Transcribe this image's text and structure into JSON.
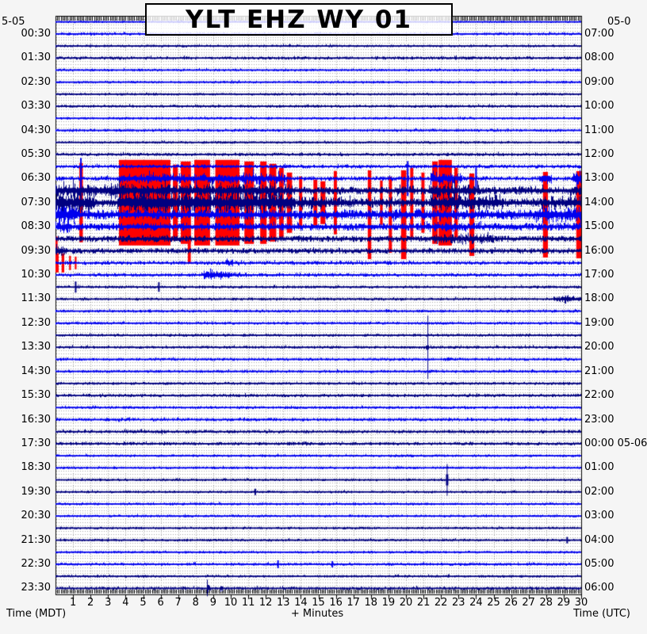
{
  "header": {
    "title": "YLT EHZ WY 01",
    "top_left_date": "5-05",
    "top_right_date": "05-0"
  },
  "axes": {
    "left_caption": "Time (MDT)",
    "right_caption": "Time (UTC)",
    "bottom_caption": "+ Minutes",
    "left_labels": [
      "00:30",
      "01:30",
      "02:30",
      "03:30",
      "04:30",
      "05:30",
      "06:30",
      "07:30",
      "08:30",
      "09:30",
      "10:30",
      "11:30",
      "12:30",
      "13:30",
      "14:30",
      "15:30",
      "16:30",
      "17:30",
      "18:30",
      "19:30",
      "20:30",
      "21:30",
      "22:30",
      "23:30"
    ],
    "right_labels": [
      "07:00",
      "08:00",
      "09:00",
      "10:00",
      "11:00",
      "12:00",
      "13:00",
      "14:00",
      "15:00",
      "16:00",
      "17:00",
      "18:00",
      "19:00",
      "20:00",
      "21:00",
      "22:00",
      "23:00",
      "00:00 05-06",
      "01:00",
      "02:00",
      "03:00",
      "04:00",
      "05:00",
      "06:00"
    ],
    "minute_labels": [
      "1",
      "2",
      "3",
      "4",
      "5",
      "6",
      "7",
      "8",
      "9",
      "10",
      "11",
      "12",
      "13",
      "14",
      "15",
      "16",
      "17",
      "18",
      "19",
      "20",
      "21",
      "22",
      "23",
      "24",
      "25",
      "26",
      "27",
      "28",
      "29",
      "30"
    ]
  },
  "chart_data": {
    "type": "helicorder",
    "station_title": "YLT EHZ WY 01",
    "station": "YLT",
    "channel": "EHZ",
    "network": "WY",
    "location": "01",
    "minutes_per_row": 30,
    "rows": 48,
    "first_row_start_mdt": "00:00",
    "utc_offset_hours": 6,
    "colors": {
      "even_hour_trace": "#0000EE",
      "odd_hour_trace": "#000080",
      "clip": "#FF0000",
      "grid": "#A8A8A8",
      "frame": "#000000",
      "plot_bg": "#FFFFFF"
    },
    "row_base_amp": [
      1.6,
      2.0,
      1.8,
      2.2,
      1.8,
      1.8,
      1.8,
      2.0,
      1.8,
      2.0,
      1.8,
      2.2,
      2.6,
      3.0,
      5.0,
      6.0,
      6.5,
      5.0,
      4.0,
      3.5,
      2.6,
      2.4,
      2.0,
      2.0,
      2.0,
      2.0,
      2.0,
      2.0,
      2.0,
      2.0,
      2.0,
      2.2,
      2.0,
      2.2,
      2.2,
      2.2,
      1.8,
      1.8,
      1.8,
      1.8,
      1.8,
      1.8,
      1.8,
      1.8,
      1.8,
      2.0,
      1.8,
      2.2
    ],
    "events": [
      {
        "t": "eq",
        "row": 5,
        "m0": 3.05,
        "m1": 3.7,
        "a": 5
      },
      {
        "t": "spike",
        "row": 13,
        "m": 1.45,
        "h": 26,
        "w": 2
      },
      {
        "t": "noise",
        "row": 13,
        "m0": 3.6,
        "m1": 13.2,
        "a": 8,
        "sp": 1
      },
      {
        "t": "spike",
        "row": 13,
        "m": 20.1,
        "h": 22,
        "w": 2
      },
      {
        "t": "noise",
        "row": 13,
        "m0": 21.4,
        "m1": 23.2,
        "a": 10,
        "sp": 1
      },
      {
        "t": "spike",
        "row": 13,
        "m": 24.0,
        "h": 14,
        "w": 2
      },
      {
        "t": "noise",
        "row": 13,
        "m0": 27.6,
        "m1": 28.3,
        "a": 12,
        "sp": 1
      },
      {
        "t": "noise",
        "row": 13,
        "m0": 29.5,
        "m1": 30,
        "a": 14,
        "sp": 1
      },
      {
        "t": "noise",
        "row": 14,
        "m0": 0,
        "m1": 13.5,
        "a": 11,
        "sp": 1
      },
      {
        "t": "noise",
        "row": 14,
        "m0": 13.5,
        "m1": 17,
        "a": 6
      },
      {
        "t": "noise",
        "row": 14,
        "m0": 19.3,
        "m1": 20.6,
        "a": 8
      },
      {
        "t": "noise",
        "row": 14,
        "m0": 21.3,
        "m1": 24.2,
        "a": 11,
        "sp": 1
      },
      {
        "t": "noise",
        "row": 14,
        "m0": 26.3,
        "m1": 28.2,
        "a": 7
      },
      {
        "t": "noise",
        "row": 14,
        "m0": 29.4,
        "m1": 30,
        "a": 9
      },
      {
        "t": "noise",
        "row": 15,
        "m0": 0,
        "m1": 2.2,
        "a": 16,
        "sp": 1
      },
      {
        "t": "noise",
        "row": 15,
        "m0": 3.5,
        "m1": 13.6,
        "a": 17,
        "sp": 1
      },
      {
        "t": "noise",
        "row": 15,
        "m0": 13.6,
        "m1": 16.8,
        "a": 10
      },
      {
        "t": "noise",
        "row": 15,
        "m0": 17.5,
        "m1": 19.2,
        "a": 7
      },
      {
        "t": "noise",
        "row": 15,
        "m0": 21.4,
        "m1": 25.6,
        "a": 13,
        "sp": 1
      },
      {
        "t": "noise",
        "row": 15,
        "m0": 27.7,
        "m1": 30,
        "a": 11
      },
      {
        "t": "noise",
        "row": 16,
        "m0": 0,
        "m1": 1.2,
        "a": 16
      },
      {
        "t": "noise",
        "row": 16,
        "m0": 7.9,
        "m1": 9.2,
        "a": 10
      },
      {
        "t": "noise",
        "row": 16,
        "m0": 19,
        "m1": 22.6,
        "a": 9
      },
      {
        "t": "noise",
        "row": 16,
        "m0": 27.4,
        "m1": 30,
        "a": 13
      },
      {
        "t": "noise",
        "row": 17,
        "m0": 0,
        "m1": 0.8,
        "a": 10
      },
      {
        "t": "noise",
        "row": 17,
        "m0": 21,
        "m1": 24.3,
        "a": 8
      },
      {
        "t": "noise",
        "row": 18,
        "m0": 4,
        "m1": 6,
        "a": 6
      },
      {
        "t": "noise",
        "row": 18,
        "m0": 21.5,
        "m1": 25,
        "a": 8
      },
      {
        "t": "noise",
        "row": 19,
        "m0": 0,
        "m1": 0.6,
        "a": 10
      },
      {
        "t": "eq",
        "row": 20,
        "m0": 9.5,
        "m1": 15.5,
        "a": 7
      },
      {
        "t": "noise",
        "row": 20,
        "m0": 16.2,
        "m1": 17.2,
        "a": 3.5
      },
      {
        "t": "eq",
        "row": 21,
        "m0": 8.3,
        "m1": 14.5,
        "a": 14
      },
      {
        "t": "spike",
        "row": 22,
        "m": 1.15,
        "h": 7,
        "w": 2
      },
      {
        "t": "spike",
        "row": 22,
        "m": 5.9,
        "h": 6,
        "w": 2
      },
      {
        "t": "noise",
        "row": 23,
        "m0": 28.4,
        "m1": 30,
        "a": 6
      },
      {
        "t": "spike",
        "row": 27,
        "m": 21.25,
        "h": 40,
        "w": 1
      },
      {
        "t": "eq",
        "row": 27,
        "m0": 21.1,
        "m1": 21.9,
        "a": 10
      },
      {
        "t": "eq",
        "row": 31,
        "m0": 2.4,
        "m1": 5.6,
        "a": 4.5
      },
      {
        "t": "noise",
        "row": 33,
        "m0": 2.9,
        "m1": 4.4,
        "a": 3
      },
      {
        "t": "noise",
        "row": 33,
        "m0": 4.9,
        "m1": 5.6,
        "a": 3
      },
      {
        "t": "noise",
        "row": 34,
        "m0": 3.9,
        "m1": 6.3,
        "a": 3.5
      },
      {
        "t": "noise",
        "row": 35,
        "m0": 12.5,
        "m1": 16.6,
        "a": 2.8
      },
      {
        "t": "spike",
        "row": 38,
        "m": 22.35,
        "h": 20,
        "w": 1
      },
      {
        "t": "spike",
        "row": 38,
        "m": 22.35,
        "h": 7,
        "w": 3
      },
      {
        "t": "spike",
        "row": 39,
        "m": 11.4,
        "h": 4,
        "w": 2
      },
      {
        "t": "spike",
        "row": 43,
        "m": 29.2,
        "h": 4,
        "w": 2
      },
      {
        "t": "spike",
        "row": 45,
        "m": 12.7,
        "h": 5,
        "w": 2
      },
      {
        "t": "spike",
        "row": 45,
        "m": 15.8,
        "h": 4,
        "w": 2
      },
      {
        "t": "eq",
        "row": 45,
        "m0": 28,
        "m1": 28.8,
        "a": 5
      },
      {
        "t": "eq",
        "row": 47,
        "m0": 8.6,
        "m1": 9.3,
        "a": 13
      },
      {
        "t": "eq",
        "row": 47,
        "m0": 9.35,
        "m1": 10.1,
        "a": 11
      }
    ],
    "clips": [
      {
        "row": 15,
        "m0": 1.36,
        "m1": 1.56,
        "h": 50
      },
      {
        "row": 15,
        "m0": 3.62,
        "m1": 6.56,
        "h": 54
      },
      {
        "row": 15,
        "m0": 6.7,
        "m1": 6.98,
        "h": 48
      },
      {
        "row": 15,
        "m0": 7.15,
        "m1": 7.72,
        "h": 52
      },
      {
        "row": 16,
        "m0": 7.55,
        "m1": 7.72,
        "h": 62
      },
      {
        "row": 15,
        "m0": 7.92,
        "m1": 8.82,
        "h": 54
      },
      {
        "row": 15,
        "m0": 9.12,
        "m1": 10.5,
        "h": 54
      },
      {
        "row": 15,
        "m0": 10.78,
        "m1": 11.32,
        "h": 52
      },
      {
        "row": 15,
        "m0": 11.68,
        "m1": 12.05,
        "h": 52
      },
      {
        "row": 15,
        "m0": 12.2,
        "m1": 12.6,
        "h": 49
      },
      {
        "row": 15,
        "m0": 12.76,
        "m1": 13.02,
        "h": 44
      },
      {
        "row": 15,
        "m0": 13.2,
        "m1": 13.5,
        "h": 38
      },
      {
        "row": 15,
        "m0": 13.9,
        "m1": 14.08,
        "h": 33
      },
      {
        "row": 15,
        "m0": 14.72,
        "m1": 14.94,
        "h": 29
      },
      {
        "row": 15,
        "m0": 15.12,
        "m1": 15.4,
        "h": 27
      },
      {
        "row": 15,
        "m0": 15.88,
        "m1": 16.06,
        "h": 40
      },
      {
        "row": 16,
        "m0": 17.82,
        "m1": 18.02,
        "h": 56
      },
      {
        "row": 15,
        "m0": 18.52,
        "m1": 18.67,
        "h": 28
      },
      {
        "row": 16,
        "m0": 19.02,
        "m1": 19.2,
        "h": 48
      },
      {
        "row": 16,
        "m0": 19.72,
        "m1": 20.02,
        "h": 56
      },
      {
        "row": 15,
        "m0": 20.24,
        "m1": 20.42,
        "h": 44
      },
      {
        "row": 15,
        "m0": 20.88,
        "m1": 21.06,
        "h": 38
      },
      {
        "row": 15,
        "m0": 21.5,
        "m1": 21.82,
        "h": 52
      },
      {
        "row": 15,
        "m0": 21.86,
        "m1": 22.62,
        "h": 54
      },
      {
        "row": 15,
        "m0": 22.76,
        "m1": 22.96,
        "h": 44
      },
      {
        "row": 16,
        "m0": 23.62,
        "m1": 23.9,
        "h": 52
      },
      {
        "row": 16,
        "m0": 27.82,
        "m1": 28.1,
        "h": 54
      },
      {
        "row": 16,
        "m0": 29.72,
        "m1": 30,
        "h": 55
      },
      {
        "row": 19,
        "m0": 0.0,
        "m1": 0.12,
        "h": 18
      },
      {
        "row": 20,
        "m0": 0.0,
        "m1": 0.18,
        "h": 12
      },
      {
        "row": 20,
        "m0": 0.35,
        "m1": 0.5,
        "h": 12
      },
      {
        "row": 20,
        "m0": 0.78,
        "m1": 0.88,
        "h": 9
      },
      {
        "row": 20,
        "m0": 1.1,
        "m1": 1.2,
        "h": 8
      }
    ]
  }
}
